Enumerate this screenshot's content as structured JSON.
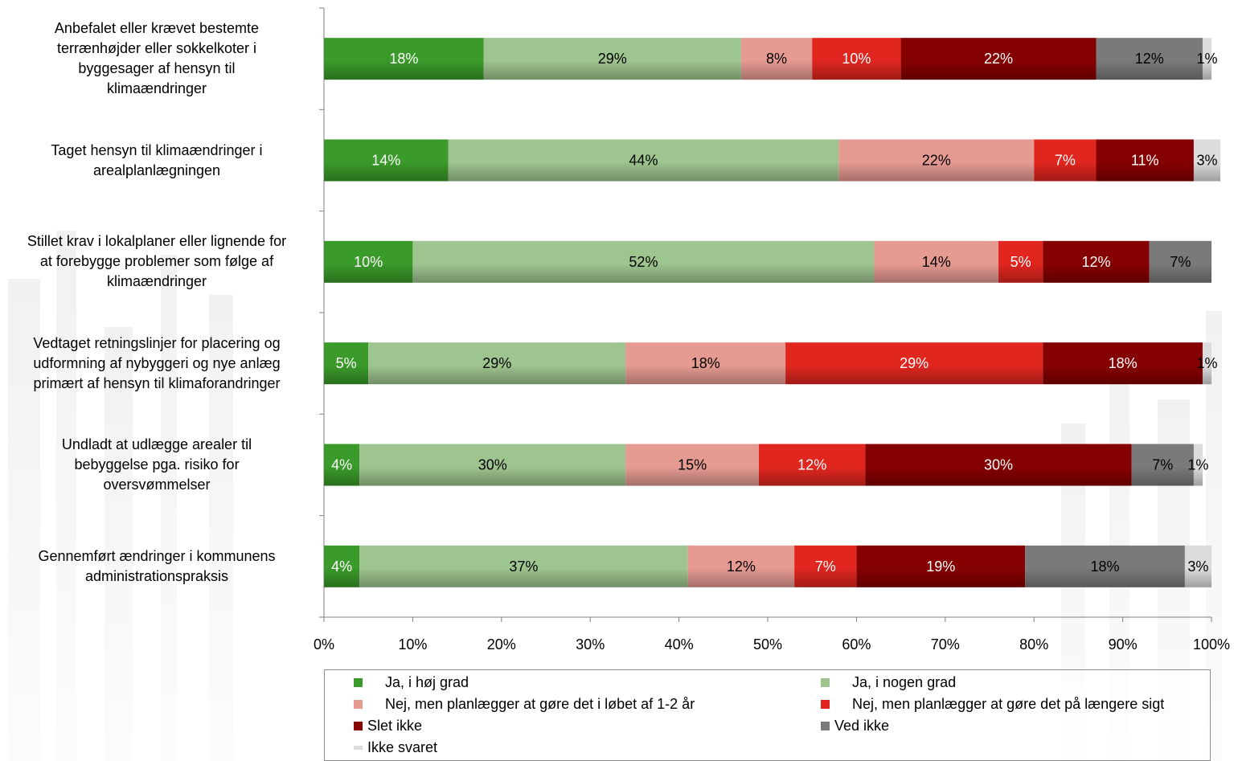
{
  "colors": {
    "Ja, i høj grad": "#3a9a2a",
    "Ja, i nogen grad": "#9ec48f",
    "Nej, men planlægger at gøre det i løbet af 1-2 år": "#e59a92",
    "Nej, men planlægger at gøre det på længere sigt": "#e0261f",
    "Slet ikke": "#850000",
    "Ved ikke": "#7a7a7a",
    "Ikke svaret": "#dcdcdc"
  },
  "chart_data": {
    "type": "bar",
    "orientation": "horizontal",
    "stacked": "percent",
    "categories": [
      "Anbefalet eller krævet bestemte terrænhøjder eller sokkelkoter i byggesager af hensyn til klimaændringer",
      "Taget hensyn til klimaændringer i arealplanlægningen",
      "Stillet krav i lokalplaner eller lignende for at forebygge problemer som følge af klimaændringer",
      "Vedtaget retningslinjer for placering og udformning af nybyggeri og nye anlæg primært af hensyn til klimaforandringer",
      "Undladt at udlægge arealer til bebyggelse pga. risiko for oversvømmelser",
      "Gennemført ændringer i kommunens administrationspraksis"
    ],
    "category_lines": [
      [
        "Anbefalet eller krævet bestemte",
        "terrænhøjder eller sokkelkoter i",
        "byggesager af hensyn til",
        "klimaændringer"
      ],
      [
        "Taget hensyn til klimaændringer i",
        "arealplanlægningen"
      ],
      [
        "Stillet krav i lokalplaner eller lignende for",
        "at forebygge problemer som følge af",
        "klimaændringer"
      ],
      [
        "Vedtaget retningslinjer for placering og",
        "udformning af nybyggeri og nye anlæg",
        "primært af hensyn til klimaforandringer"
      ],
      [
        "Undladt at udlægge arealer til",
        "bebyggelse pga. risiko for",
        "oversvømmelser"
      ],
      [
        "Gennemført ændringer i kommunens",
        "administrationspraksis"
      ]
    ],
    "series": [
      {
        "name": "Ja, i høj grad",
        "values": [
          18,
          14,
          10,
          5,
          4,
          4
        ],
        "labels": [
          "18%",
          "14%",
          "10%",
          "5%",
          "4%",
          "4%"
        ]
      },
      {
        "name": "Ja, i nogen grad",
        "values": [
          29,
          44,
          52,
          29,
          30,
          37
        ],
        "labels": [
          "29%",
          "44%",
          "52%",
          "29%",
          "30%",
          "37%"
        ]
      },
      {
        "name": "Nej, men planlægger at gøre det i løbet af 1-2 år",
        "values": [
          8,
          22,
          14,
          18,
          15,
          12
        ],
        "labels": [
          "8%",
          "22%",
          "14%",
          "18%",
          "15%",
          "12%"
        ]
      },
      {
        "name": "Nej, men planlægger at gøre det på længere sigt",
        "values": [
          10,
          7,
          5,
          29,
          12,
          7
        ],
        "labels": [
          "10%",
          "7%",
          "5%",
          "29%",
          "12%",
          "7%"
        ]
      },
      {
        "name": "Slet ikke",
        "values": [
          22,
          11,
          12,
          18,
          30,
          19
        ],
        "labels": [
          "22%",
          "11%",
          "12%",
          "18%",
          "30%",
          "19%"
        ]
      },
      {
        "name": "Ved ikke",
        "values": [
          12,
          0,
          7,
          0,
          7,
          18
        ],
        "labels": [
          "12%",
          "",
          "7%",
          "",
          "7%",
          "18%"
        ]
      },
      {
        "name": "Ikke svaret",
        "values": [
          1,
          3,
          0,
          1,
          1,
          3
        ],
        "labels": [
          "1%",
          "3%",
          "",
          "1%",
          "1%",
          "3%"
        ]
      }
    ],
    "x_ticks": [
      "0%",
      "10%",
      "20%",
      "30%",
      "40%",
      "50%",
      "60%",
      "70%",
      "80%",
      "90%",
      "100%"
    ],
    "xlim": [
      0,
      100
    ],
    "grid": false,
    "legend_position": "bottom",
    "title": "",
    "xlabel": "",
    "ylabel": ""
  }
}
